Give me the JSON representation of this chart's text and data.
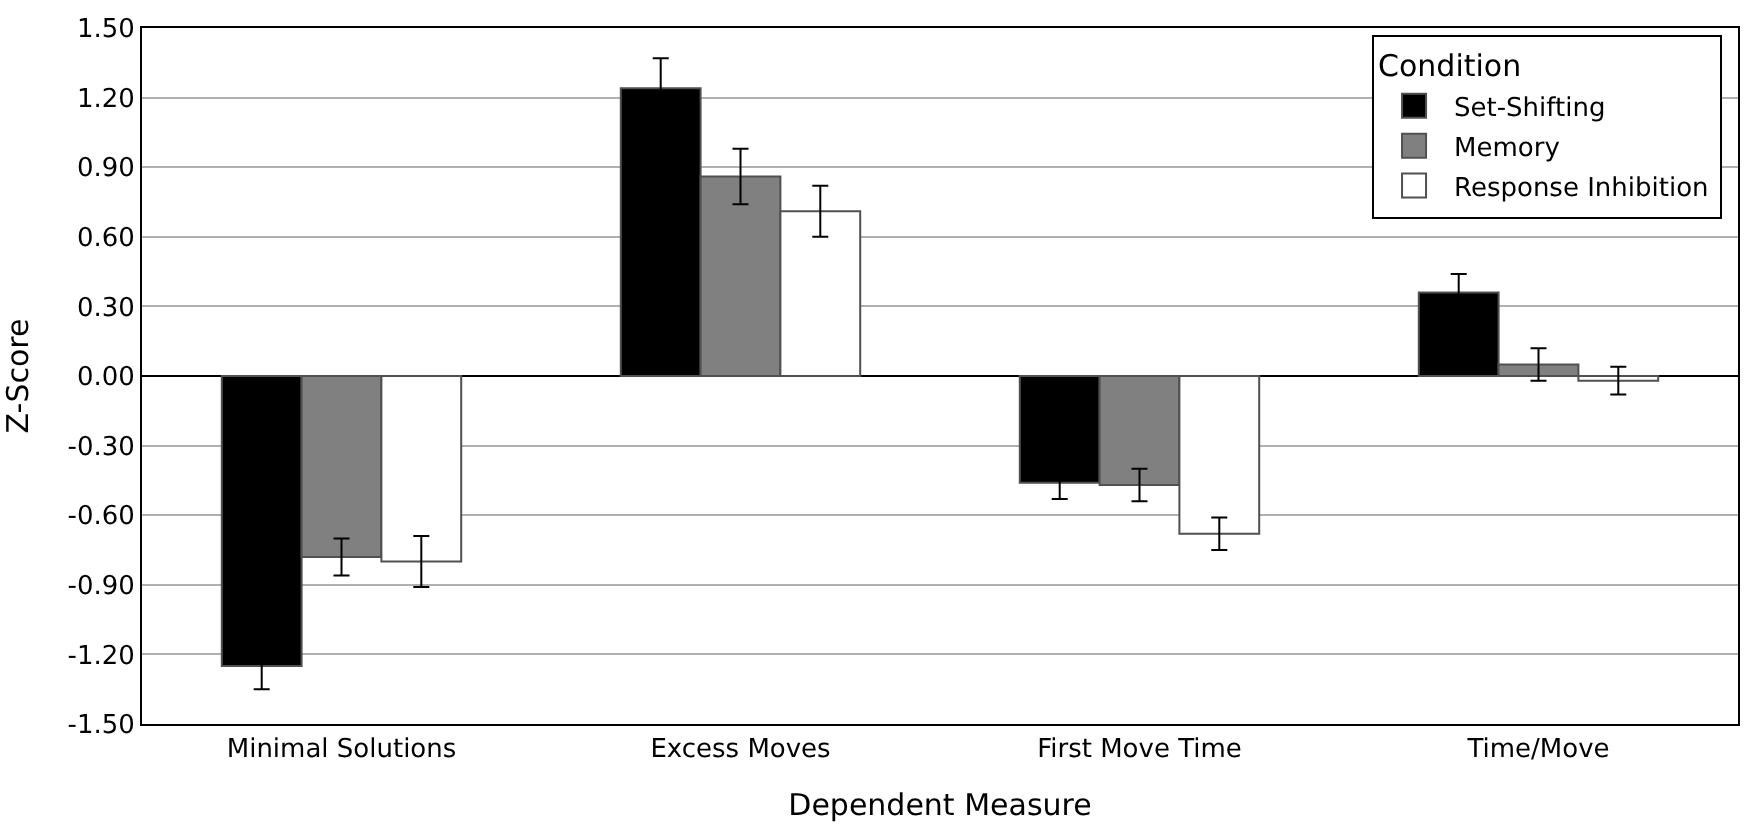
{
  "chart_data": {
    "type": "bar",
    "xlabel": "Dependent Measure",
    "ylabel": "Z-Score",
    "legend_title": "Condition",
    "categories": [
      "Minimal Solutions",
      "Excess Moves",
      "First Move Time",
      "Time/Move"
    ],
    "series": [
      {
        "name": "Set-Shifting",
        "color": "#000000",
        "values": [
          -1.25,
          1.24,
          -0.46,
          0.36
        ],
        "errors": [
          0.1,
          0.13,
          0.07,
          0.08
        ]
      },
      {
        "name": "Memory",
        "color": "#808080",
        "values": [
          -0.78,
          0.86,
          -0.47,
          0.05
        ],
        "errors": [
          0.08,
          0.12,
          0.07,
          0.07
        ]
      },
      {
        "name": "Response Inhibition",
        "color": "#ffffff",
        "values": [
          -0.8,
          0.71,
          -0.68,
          -0.02
        ],
        "errors": [
          0.11,
          0.11,
          0.07,
          0.06
        ]
      }
    ],
    "ylim": [
      -1.5,
      1.5
    ],
    "yticks": [
      {
        "value": -1.5,
        "label": "-1.50"
      },
      {
        "value": -1.2,
        "label": "-1.20"
      },
      {
        "value": -0.9,
        "label": "-0.90"
      },
      {
        "value": -0.6,
        "label": "-0.60"
      },
      {
        "value": -0.3,
        "label": "-0.30"
      },
      {
        "value": 0,
        "label": "0.00"
      },
      {
        "value": 0.3,
        "label": "0.30"
      },
      {
        "value": 0.6,
        "label": "0.60"
      },
      {
        "value": 0.9,
        "label": "0.90"
      },
      {
        "value": 1.2,
        "label": "1.20"
      },
      {
        "value": 1.5,
        "label": "1.50"
      }
    ],
    "grid": "y",
    "legend": "top right"
  }
}
